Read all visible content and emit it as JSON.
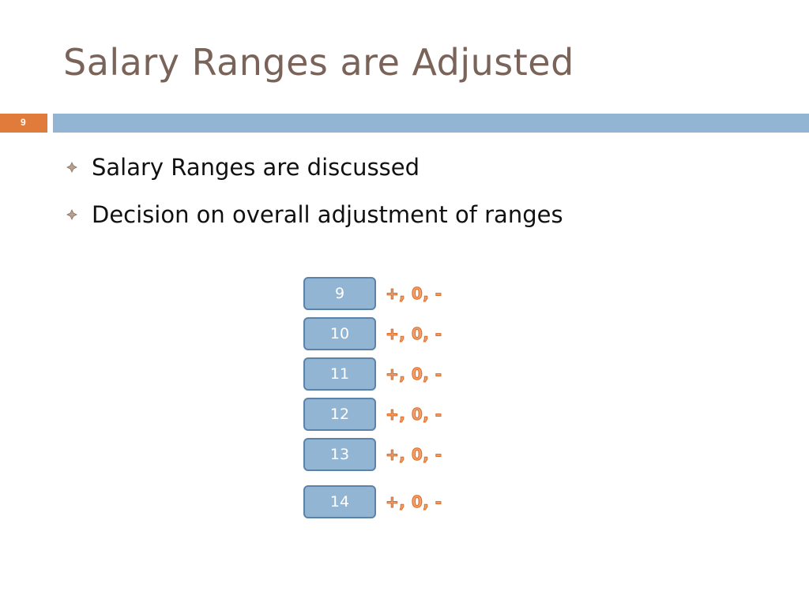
{
  "slide": {
    "title": "Salary Ranges are Adjusted",
    "number": "9",
    "accent_color": "#e07b3c",
    "rule_color": "#93b5d4"
  },
  "bullets": [
    {
      "text": "Salary Ranges are discussed",
      "icon": "diamond-bullet-icon"
    },
    {
      "text": "Decision on overall adjustment of ranges",
      "icon": "diamond-bullet-icon"
    }
  ],
  "ranges": [
    {
      "grade": "9",
      "adjustment": "+, 0, -"
    },
    {
      "grade": "10",
      "adjustment": "+, 0, -"
    },
    {
      "grade": "11",
      "adjustment": "+, 0, -"
    },
    {
      "grade": "12",
      "adjustment": "+, 0, -"
    },
    {
      "grade": "13",
      "adjustment": "+, 0, -"
    },
    {
      "grade": "14",
      "adjustment": "+, 0, -"
    }
  ]
}
